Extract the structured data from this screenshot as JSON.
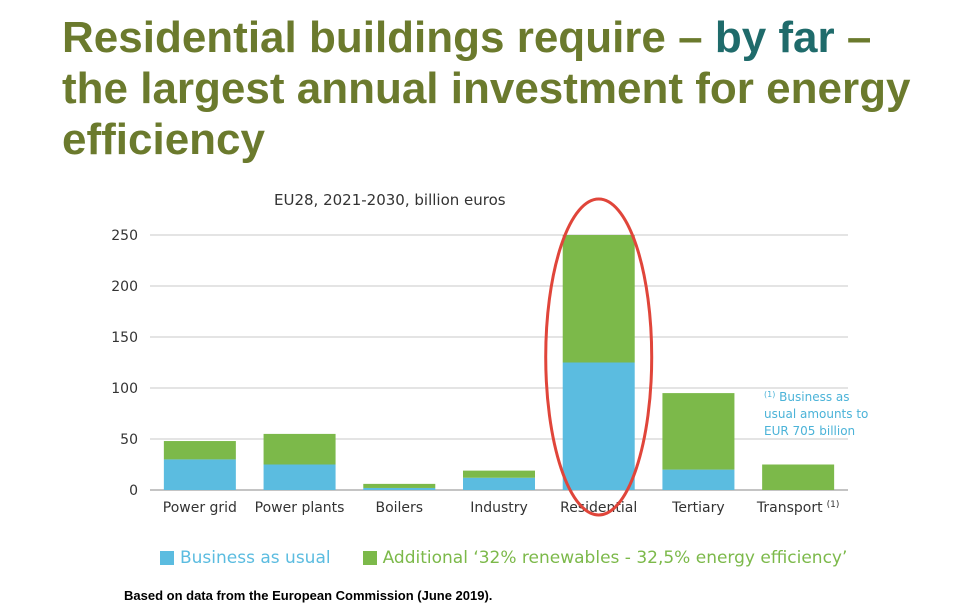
{
  "slide": {
    "title_part1": "Residential buildings require – ",
    "title_part2": "by far",
    "title_part3": " – the largest annual investment for energy efficiency",
    "footnote": "Based on data from the European Commission (June 2019)."
  },
  "chart_data": {
    "type": "bar",
    "stacked": true,
    "subtitle": "EU28, 2021-2030, billion euros",
    "categories": [
      "Power grid",
      "Power plants",
      "Boilers",
      "Industry",
      "Residential",
      "Tertiary",
      "Transport"
    ],
    "category_superscripts": [
      "",
      "",
      "",
      "",
      "",
      "",
      "(1)"
    ],
    "series": [
      {
        "name": "Business as usual",
        "values": [
          30,
          25,
          2,
          12,
          125,
          20,
          0
        ],
        "color": "#5bbce0"
      },
      {
        "name": "Additional ‘32% renewables - 32,5% energy efficiency’",
        "values": [
          18,
          30,
          4,
          7,
          125,
          75,
          25
        ],
        "color": "#7cb94a"
      }
    ],
    "ylim": [
      0,
      250
    ],
    "yticks": [
      0,
      50,
      100,
      150,
      200,
      250
    ],
    "grid": true,
    "legend": "bottom",
    "annotation": {
      "marker": "(1)",
      "text_lines": [
        "Business as",
        "usual amounts to",
        "EUR 705 billion"
      ],
      "color": "#4bb3d8"
    },
    "highlight": {
      "category": "Residential",
      "shape": "ellipse",
      "color": "#e0453a"
    }
  }
}
